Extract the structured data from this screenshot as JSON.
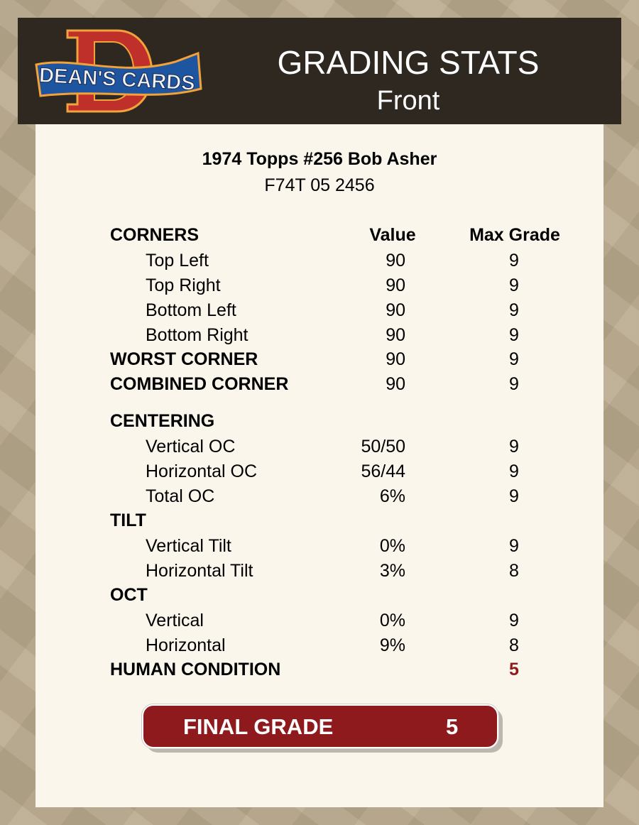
{
  "header": {
    "logo_text": "DEAN'S CARDS",
    "title": "GRADING STATS",
    "subtitle": "Front"
  },
  "card": {
    "title": "1974 Topps #256 Bob Asher",
    "id": "F74T 05 2456"
  },
  "columns": {
    "label": "CORNERS",
    "value": "Value",
    "max": "Max Grade"
  },
  "rows": [
    {
      "label": "Top Left",
      "value": "90",
      "max": "9",
      "type": "sub"
    },
    {
      "label": "Top Right",
      "value": "90",
      "max": "9",
      "type": "sub"
    },
    {
      "label": "Bottom Left",
      "value": "90",
      "max": "9",
      "type": "sub"
    },
    {
      "label": "Bottom Right",
      "value": "90",
      "max": "9",
      "type": "sub"
    },
    {
      "label": "WORST CORNER",
      "value": "90",
      "max": "9",
      "type": "bold"
    },
    {
      "label": "COMBINED CORNER",
      "value": "90",
      "max": "9",
      "type": "bold"
    },
    {
      "label": "CENTERING",
      "value": "",
      "max": "",
      "type": "bold"
    },
    {
      "label": "Vertical OC",
      "value": "50/50",
      "max": "9",
      "type": "sub"
    },
    {
      "label": "Horizontal OC",
      "value": "56/44",
      "max": "9",
      "type": "sub"
    },
    {
      "label": "Total OC",
      "value": "6%",
      "max": "9",
      "type": "sub"
    },
    {
      "label": "TILT",
      "value": "",
      "max": "",
      "type": "bold"
    },
    {
      "label": "Vertical Tilt",
      "value": "0%",
      "max": "9",
      "type": "sub"
    },
    {
      "label": "Horizontal Tilt",
      "value": "3%",
      "max": "8",
      "type": "sub"
    },
    {
      "label": "OCT",
      "value": "",
      "max": "",
      "type": "bold"
    },
    {
      "label": "Vertical",
      "value": "0%",
      "max": "9",
      "type": "sub"
    },
    {
      "label": "Horizontal",
      "value": "9%",
      "max": "8",
      "type": "sub"
    },
    {
      "label": "HUMAN CONDITION",
      "value": "",
      "max": "5",
      "type": "bold",
      "highlight": "#8f1a1d"
    }
  ],
  "final": {
    "label": "FINAL GRADE",
    "value": "5"
  },
  "colors": {
    "header_bg": "#2e2820",
    "accent": "#8f1a1d",
    "panel": "#fbf6ec"
  }
}
